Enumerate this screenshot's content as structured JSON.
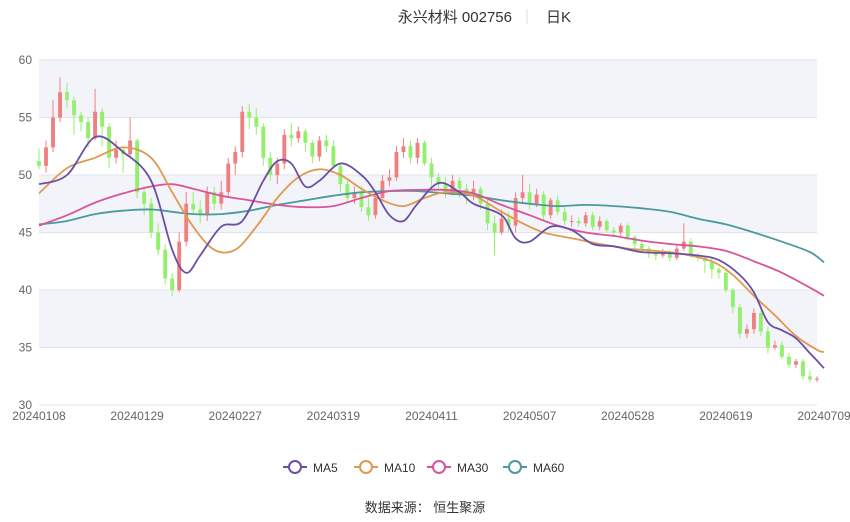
{
  "header": {
    "stock_name": "永兴材料 002756",
    "period": "日K"
  },
  "source_note": "数据来源： 恒生聚源",
  "colors": {
    "up": "#f08080",
    "down": "#92f06c",
    "ma5": "#6a4fa5",
    "ma10": "#e09a50",
    "ma30": "#d9549a",
    "ma60": "#4b9a9e",
    "band": "#f3f4fa",
    "grid": "#dfe3ef",
    "axis_text": "#666666"
  },
  "chart_data": {
    "type": "candlestick",
    "title": "永兴材料 002756",
    "subtitle": "日K",
    "ylim": [
      30,
      60
    ],
    "yticks": [
      30,
      35,
      40,
      45,
      50,
      55,
      60
    ],
    "xtick_labels": [
      "20240108",
      "20240129",
      "20240227",
      "20240319",
      "20240411",
      "20240507",
      "20240528",
      "20240619",
      "20240709"
    ],
    "xtick_index": [
      0,
      14,
      28,
      42,
      56,
      70,
      84,
      98,
      112
    ],
    "bands": "alternating",
    "legend": {
      "placement": "bottom-center",
      "items": [
        "MA5",
        "MA10",
        "MA30",
        "MA60"
      ]
    },
    "candles": [
      [
        51.2,
        50.8,
        52.3,
        50.5
      ],
      [
        50.8,
        52.4,
        53.0,
        50.2
      ],
      [
        52.4,
        55.0,
        56.5,
        52.0
      ],
      [
        55.0,
        57.2,
        58.5,
        54.6
      ],
      [
        57.2,
        56.5,
        58.0,
        55.8
      ],
      [
        56.5,
        55.2,
        56.8,
        53.5
      ],
      [
        55.2,
        54.6,
        55.5,
        53.8
      ],
      [
        54.6,
        53.2,
        55.0,
        52.4
      ],
      [
        53.2,
        55.5,
        57.5,
        53.0
      ],
      [
        55.5,
        54.2,
        55.8,
        52.5
      ],
      [
        54.2,
        51.5,
        54.5,
        50.6
      ],
      [
        51.5,
        52.2,
        53.0,
        51.0
      ],
      [
        52.2,
        51.8,
        52.5,
        50.2
      ],
      [
        51.8,
        53.0,
        55.0,
        51.5
      ],
      [
        53.0,
        48.5,
        53.2,
        48.0
      ],
      [
        48.5,
        47.5,
        49.0,
        46.5
      ],
      [
        47.5,
        45.0,
        48.0,
        44.5
      ],
      [
        45.0,
        43.5,
        45.8,
        43.0
      ],
      [
        43.5,
        41.0,
        44.0,
        40.5
      ],
      [
        41.0,
        40.0,
        41.5,
        39.5
      ],
      [
        40.0,
        44.2,
        45.0,
        39.8
      ],
      [
        44.2,
        47.5,
        48.5,
        43.8
      ],
      [
        47.5,
        47.0,
        48.5,
        46.5
      ],
      [
        47.0,
        46.5,
        47.8,
        45.8
      ],
      [
        46.5,
        48.5,
        49.0,
        46.0
      ],
      [
        48.5,
        47.5,
        49.0,
        47.0
      ],
      [
        47.5,
        48.5,
        49.5,
        47.0
      ],
      [
        48.5,
        51.0,
        51.5,
        48.0
      ],
      [
        51.0,
        52.0,
        52.5,
        50.0
      ],
      [
        52.0,
        55.5,
        56.0,
        51.5
      ],
      [
        55.5,
        55.0,
        56.2,
        54.0
      ],
      [
        55.0,
        54.2,
        55.8,
        53.5
      ],
      [
        54.2,
        51.5,
        54.5,
        50.8
      ],
      [
        51.5,
        50.0,
        52.0,
        49.5
      ],
      [
        50.0,
        51.0,
        51.5,
        49.2
      ],
      [
        51.0,
        53.5,
        54.0,
        50.5
      ],
      [
        53.5,
        53.2,
        54.5,
        52.5
      ],
      [
        53.2,
        53.8,
        54.2,
        52.8
      ],
      [
        53.8,
        52.8,
        54.0,
        52.0
      ],
      [
        52.8,
        51.6,
        53.0,
        51.0
      ],
      [
        51.6,
        53.0,
        53.4,
        51.2
      ],
      [
        53.0,
        52.5,
        53.5,
        52.0
      ],
      [
        52.5,
        50.8,
        53.0,
        50.5
      ],
      [
        50.8,
        49.2,
        51.0,
        48.5
      ],
      [
        49.2,
        48.0,
        49.5,
        47.6
      ],
      [
        48.0,
        48.5,
        49.0,
        47.5
      ],
      [
        48.5,
        47.2,
        49.0,
        46.8
      ],
      [
        47.2,
        46.5,
        48.0,
        46.0
      ],
      [
        46.5,
        48.0,
        48.5,
        46.2
      ],
      [
        48.0,
        49.5,
        50.0,
        47.8
      ],
      [
        49.5,
        49.8,
        50.5,
        49.0
      ],
      [
        49.8,
        52.0,
        52.5,
        49.5
      ],
      [
        52.0,
        52.5,
        53.2,
        51.5
      ],
      [
        52.5,
        51.5,
        53.0,
        51.0
      ],
      [
        51.5,
        52.8,
        53.2,
        51.0
      ],
      [
        52.8,
        51.0,
        53.0,
        50.8
      ],
      [
        51.0,
        49.8,
        51.5,
        49.0
      ],
      [
        49.8,
        49.2,
        50.2,
        48.8
      ],
      [
        49.2,
        48.5,
        49.8,
        48.0
      ],
      [
        48.5,
        49.5,
        50.0,
        48.2
      ],
      [
        49.5,
        48.8,
        49.8,
        48.0
      ],
      [
        48.8,
        48.2,
        49.2,
        47.5
      ],
      [
        48.2,
        48.8,
        49.5,
        47.8
      ],
      [
        48.8,
        47.5,
        49.0,
        47.0
      ],
      [
        47.5,
        45.8,
        48.0,
        45.2
      ],
      [
        45.8,
        45.0,
        46.5,
        43.0
      ],
      [
        45.0,
        46.2,
        47.0,
        44.8
      ],
      [
        46.2,
        45.6,
        46.8,
        45.0
      ],
      [
        45.6,
        48.0,
        48.5,
        45.0
      ],
      [
        48.0,
        48.5,
        50.0,
        47.5
      ],
      [
        48.5,
        47.5,
        49.2,
        47.0
      ],
      [
        47.5,
        48.3,
        48.8,
        47.2
      ],
      [
        48.3,
        46.5,
        48.6,
        46.0
      ],
      [
        46.5,
        47.8,
        48.0,
        46.2
      ],
      [
        47.8,
        46.8,
        48.2,
        46.5
      ],
      [
        46.8,
        46.0,
        47.2,
        45.6
      ],
      [
        46.0,
        46.0,
        46.5,
        45.5
      ],
      [
        46.0,
        45.8,
        46.3,
        45.5
      ],
      [
        45.8,
        46.5,
        46.8,
        45.5
      ],
      [
        46.5,
        45.5,
        46.8,
        45.2
      ],
      [
        45.5,
        46.0,
        46.4,
        45.2
      ],
      [
        46.0,
        45.2,
        46.2,
        45.0
      ],
      [
        45.2,
        45.0,
        45.5,
        44.6
      ],
      [
        45.0,
        45.6,
        45.8,
        44.7
      ],
      [
        45.6,
        44.6,
        45.8,
        44.3
      ],
      [
        44.6,
        44.0,
        44.8,
        43.6
      ],
      [
        44.0,
        43.6,
        44.2,
        43.2
      ],
      [
        43.6,
        43.2,
        43.8,
        42.8
      ],
      [
        43.2,
        43.0,
        43.5,
        42.6
      ],
      [
        43.0,
        43.3,
        43.6,
        42.8
      ],
      [
        43.3,
        42.8,
        43.5,
        42.5
      ],
      [
        42.8,
        43.6,
        44.0,
        42.6
      ],
      [
        43.6,
        44.2,
        45.8,
        43.4
      ],
      [
        44.2,
        43.0,
        44.5,
        42.8
      ],
      [
        43.0,
        42.8,
        43.2,
        42.5
      ],
      [
        42.8,
        42.5,
        43.0,
        41.5
      ],
      [
        42.5,
        41.8,
        42.8,
        41.0
      ],
      [
        41.8,
        41.5,
        42.0,
        41.0
      ],
      [
        41.5,
        40.0,
        41.8,
        39.8
      ],
      [
        40.0,
        38.5,
        40.2,
        38.0
      ],
      [
        38.5,
        36.2,
        38.8,
        35.8
      ],
      [
        36.2,
        36.6,
        37.0,
        35.8
      ],
      [
        36.6,
        38.0,
        38.4,
        36.2
      ],
      [
        38.0,
        36.4,
        38.2,
        36.0
      ],
      [
        36.4,
        35.0,
        36.8,
        34.5
      ],
      [
        35.0,
        35.2,
        35.6,
        34.8
      ],
      [
        35.2,
        34.2,
        35.5,
        34.0
      ],
      [
        34.2,
        33.5,
        34.5,
        33.2
      ],
      [
        33.5,
        33.8,
        34.0,
        33.2
      ],
      [
        33.8,
        32.5,
        34.0,
        32.2
      ],
      [
        32.5,
        32.2,
        33.0,
        32.0
      ],
      [
        32.2,
        32.3,
        32.5,
        32.0
      ]
    ],
    "ma5": [
      [
        0,
        49.2
      ],
      [
        4,
        50.0
      ],
      [
        8,
        53.3
      ],
      [
        12,
        52.0
      ],
      [
        16,
        49.5
      ],
      [
        19,
        43.5
      ],
      [
        21,
        41.5
      ],
      [
        23,
        43.0
      ],
      [
        26,
        45.5
      ],
      [
        29,
        46.0
      ],
      [
        32,
        49.5
      ],
      [
        34,
        51.2
      ],
      [
        36,
        51.0
      ],
      [
        38,
        49.0
      ],
      [
        40,
        49.5
      ],
      [
        43,
        51.0
      ],
      [
        46,
        50.0
      ],
      [
        48,
        48.5
      ],
      [
        50,
        46.5
      ],
      [
        52,
        46.0
      ],
      [
        54,
        47.5
      ],
      [
        57,
        49.3
      ],
      [
        60,
        48.5
      ],
      [
        62,
        47.5
      ],
      [
        66,
        46.5
      ],
      [
        68,
        44.5
      ],
      [
        70,
        44.2
      ],
      [
        73,
        45.5
      ],
      [
        76,
        45.2
      ],
      [
        79,
        44.0
      ],
      [
        82,
        43.8
      ],
      [
        86,
        43.3
      ],
      [
        90,
        43.2
      ],
      [
        94,
        43.0
      ],
      [
        97,
        42.6
      ],
      [
        100,
        41.3
      ],
      [
        102,
        39.8
      ],
      [
        104,
        37.2
      ],
      [
        106,
        36.5
      ],
      [
        108,
        35.8
      ],
      [
        110,
        34.5
      ],
      [
        112,
        33.2
      ]
    ],
    "ma10": [
      [
        0,
        48.4
      ],
      [
        4,
        50.6
      ],
      [
        8,
        51.5
      ],
      [
        12,
        52.4
      ],
      [
        16,
        51.5
      ],
      [
        19,
        48.5
      ],
      [
        22,
        45.5
      ],
      [
        25,
        43.5
      ],
      [
        28,
        43.5
      ],
      [
        31,
        45.5
      ],
      [
        34,
        48.0
      ],
      [
        37,
        49.8
      ],
      [
        40,
        50.5
      ],
      [
        43,
        50.0
      ],
      [
        46,
        48.8
      ],
      [
        49,
        47.8
      ],
      [
        52,
        47.3
      ],
      [
        55,
        48.0
      ],
      [
        58,
        48.5
      ],
      [
        62,
        48.2
      ],
      [
        66,
        46.8
      ],
      [
        69,
        45.8
      ],
      [
        72,
        45.0
      ],
      [
        76,
        44.5
      ],
      [
        80,
        44.0
      ],
      [
        84,
        43.6
      ],
      [
        88,
        43.4
      ],
      [
        92,
        43.1
      ],
      [
        96,
        42.5
      ],
      [
        99,
        41.3
      ],
      [
        102,
        39.5
      ],
      [
        105,
        37.8
      ],
      [
        108,
        36.0
      ],
      [
        111,
        34.8
      ],
      [
        112,
        34.6
      ]
    ],
    "ma30": [
      [
        0,
        45.6
      ],
      [
        4,
        46.5
      ],
      [
        8,
        47.6
      ],
      [
        12,
        48.4
      ],
      [
        16,
        49.0
      ],
      [
        19,
        49.2
      ],
      [
        22,
        48.8
      ],
      [
        26,
        48.2
      ],
      [
        30,
        47.8
      ],
      [
        34,
        47.4
      ],
      [
        38,
        47.2
      ],
      [
        42,
        47.3
      ],
      [
        46,
        48.0
      ],
      [
        50,
        48.6
      ],
      [
        54,
        48.7
      ],
      [
        58,
        48.7
      ],
      [
        62,
        48.4
      ],
      [
        66,
        47.4
      ],
      [
        70,
        46.5
      ],
      [
        74,
        45.6
      ],
      [
        78,
        45.0
      ],
      [
        82,
        44.7
      ],
      [
        86,
        44.3
      ],
      [
        90,
        44.0
      ],
      [
        94,
        43.8
      ],
      [
        98,
        43.4
      ],
      [
        102,
        42.5
      ],
      [
        106,
        41.5
      ],
      [
        110,
        40.2
      ],
      [
        112,
        39.5
      ]
    ],
    "ma60": [
      [
        0,
        45.7
      ],
      [
        4,
        46.0
      ],
      [
        8,
        46.6
      ],
      [
        12,
        46.9
      ],
      [
        16,
        47.0
      ],
      [
        19,
        46.8
      ],
      [
        22,
        46.6
      ],
      [
        26,
        46.6
      ],
      [
        30,
        46.9
      ],
      [
        34,
        47.4
      ],
      [
        38,
        47.8
      ],
      [
        42,
        48.2
      ],
      [
        46,
        48.5
      ],
      [
        50,
        48.6
      ],
      [
        54,
        48.6
      ],
      [
        58,
        48.4
      ],
      [
        62,
        48.2
      ],
      [
        66,
        47.8
      ],
      [
        70,
        47.5
      ],
      [
        74,
        47.3
      ],
      [
        78,
        47.4
      ],
      [
        82,
        47.3
      ],
      [
        86,
        47.1
      ],
      [
        90,
        46.8
      ],
      [
        94,
        46.2
      ],
      [
        98,
        45.7
      ],
      [
        102,
        45.0
      ],
      [
        106,
        44.2
      ],
      [
        110,
        43.3
      ],
      [
        112,
        42.4
      ]
    ]
  }
}
